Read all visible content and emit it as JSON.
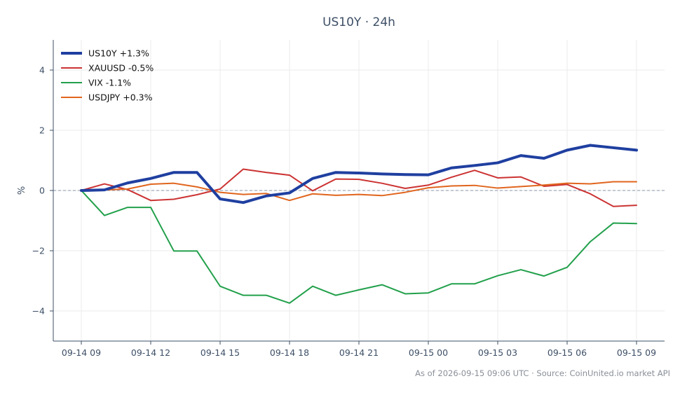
{
  "chart_data": {
    "type": "line",
    "title": "US10Y · 24h",
    "xlabel": "",
    "ylabel": "%",
    "ylim": [
      -5,
      5
    ],
    "yticks": [
      4,
      2,
      0,
      -2,
      -4
    ],
    "ytick_labels": [
      "4",
      "2",
      "0",
      "−2",
      "−4"
    ],
    "x": [
      "09-14 09",
      "09-14 10",
      "09-14 11",
      "09-14 12",
      "09-14 13",
      "09-14 14",
      "09-14 15",
      "09-14 16",
      "09-14 17",
      "09-14 18",
      "09-14 19",
      "09-14 20",
      "09-14 21",
      "09-14 22",
      "09-14 23",
      "09-15 00",
      "09-15 01",
      "09-15 02",
      "09-15 03",
      "09-15 04",
      "09-15 05",
      "09-15 06",
      "09-15 07",
      "09-15 08",
      "09-15 09"
    ],
    "xticks": [
      "09-14 09",
      "09-14 12",
      "09-14 15",
      "09-14 18",
      "09-14 21",
      "09-15 00",
      "09-15 03",
      "09-15 06",
      "09-15 09"
    ],
    "grid": true,
    "legend_position": "top-left",
    "zero_line": true,
    "series": [
      {
        "name": "US10Y +1.3%",
        "color": "#1f3fa0",
        "highlight": true,
        "values": [
          0.0,
          0.02,
          0.25,
          0.4,
          0.6,
          0.6,
          -0.28,
          -0.4,
          -0.18,
          -0.08,
          0.4,
          0.6,
          0.58,
          0.55,
          0.53,
          0.52,
          0.75,
          0.83,
          0.92,
          1.16,
          1.07,
          1.34,
          1.5,
          1.42,
          1.34
        ]
      },
      {
        "name": "XAUUSD -0.5%",
        "color": "#cc3333",
        "highlight": false,
        "values": [
          0.0,
          0.22,
          0.03,
          -0.33,
          -0.29,
          -0.14,
          0.05,
          0.71,
          0.6,
          0.51,
          -0.01,
          0.38,
          0.37,
          0.24,
          0.07,
          0.18,
          0.44,
          0.67,
          0.42,
          0.45,
          0.14,
          0.2,
          -0.11,
          -0.53,
          -0.49
        ]
      },
      {
        "name": "VIX -1.1%",
        "color": "#22a04b",
        "highlight": false,
        "values": [
          0.0,
          -0.83,
          -0.56,
          -0.56,
          -2.01,
          -2.01,
          -3.18,
          -3.48,
          -3.48,
          -3.74,
          -3.18,
          -3.48,
          -3.3,
          -3.13,
          -3.43,
          -3.4,
          -3.1,
          -3.1,
          -2.83,
          -2.63,
          -2.84,
          -2.55,
          -1.7,
          -1.08,
          -1.1
        ]
      },
      {
        "name": "USDJPY +0.3%",
        "color": "#e0651e",
        "highlight": false,
        "values": [
          0.0,
          0.02,
          0.05,
          0.21,
          0.24,
          0.12,
          -0.06,
          -0.13,
          -0.1,
          -0.33,
          -0.11,
          -0.16,
          -0.13,
          -0.17,
          -0.06,
          0.09,
          0.15,
          0.17,
          0.08,
          0.13,
          0.18,
          0.24,
          0.22,
          0.29,
          0.29
        ]
      }
    ]
  },
  "footer": "As of 2026-09-15 09:06 UTC · Source: CoinUnited.io market API"
}
